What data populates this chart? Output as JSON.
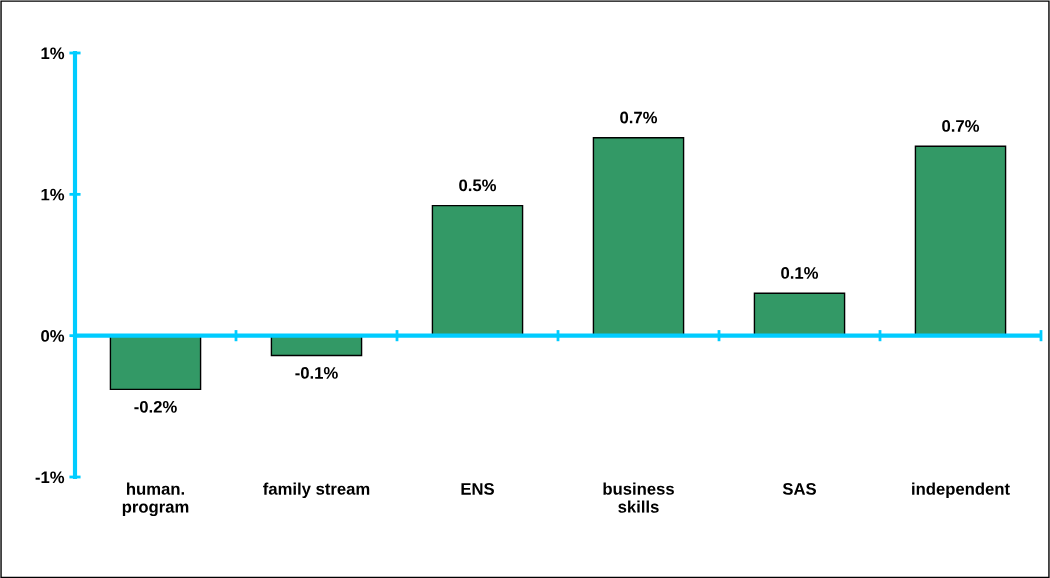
{
  "chart_data": {
    "type": "bar",
    "categories": [
      "human.\nprogram",
      "family stream",
      "ENS",
      "business\nskills",
      "SAS",
      "independent"
    ],
    "values": [
      -0.19,
      -0.07,
      0.46,
      0.7,
      0.15,
      0.67
    ],
    "value_labels": [
      "-0.2%",
      "-0.1%",
      "0.5%",
      "0.7%",
      "0.1%",
      "0.7%"
    ],
    "color": "#339966",
    "ylim": [
      -0.5,
      1.0
    ],
    "yticks": [
      {
        "value": -0.5,
        "label": "-1%"
      },
      {
        "value": 0,
        "label": "0%"
      },
      {
        "value": 0.5,
        "label": "1%"
      },
      {
        "value": 1.0,
        "label": "1%"
      }
    ],
    "ref_lines": [
      {
        "axis": "y",
        "value": 0,
        "color": "#00ccff"
      }
    ],
    "grid": false
  }
}
